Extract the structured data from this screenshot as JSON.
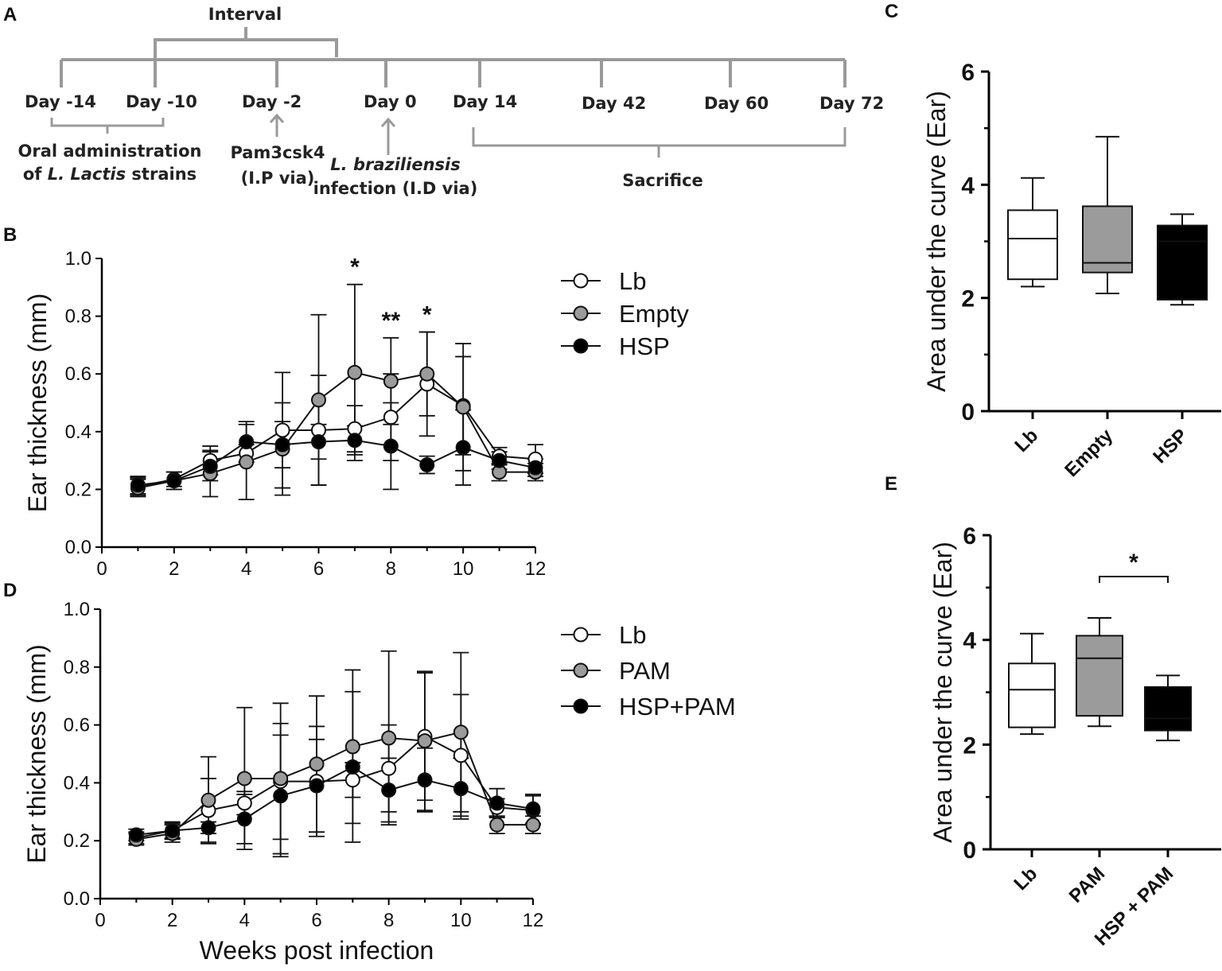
{
  "panels": {
    "A": "A",
    "B": "B",
    "C": "C",
    "D": "D",
    "E": "E"
  },
  "timeline": {
    "interval_label": "Interval",
    "days": [
      {
        "id": "m14",
        "label": "Day  -14"
      },
      {
        "id": "m10",
        "label": "Day  -10"
      },
      {
        "id": "m2",
        "label": "Day  -2"
      },
      {
        "id": "d0",
        "label": "Day 0"
      },
      {
        "id": "d14",
        "label": "Day 14"
      },
      {
        "id": "d42",
        "label": "Day 42"
      },
      {
        "id": "d60",
        "label": "Day 60"
      },
      {
        "id": "d72",
        "label": "Day 72"
      }
    ],
    "oral_line1": "Oral administration",
    "oral_line2_pre": "of ",
    "oral_line2_italic": "L. Lactis",
    "oral_line2_post": " strains",
    "pam_line1": "Pam3csk4",
    "pam_line2": "(I.P via)",
    "inf_line1": "L. braziliensis",
    "inf_line2": "infection (I.D via)",
    "sacrifice": "Sacrifice"
  },
  "colors": {
    "white": "#ffffff",
    "gray": "#9b9b9b",
    "black": "#000000",
    "timeline": "#9a9a9a"
  },
  "chart_data": [
    {
      "id": "B",
      "type": "line",
      "xlabel": "",
      "ylabel": "Ear thickness (mm)",
      "xlim": [
        0,
        12
      ],
      "ylim": [
        0,
        1.0
      ],
      "xticks": [
        "0",
        "2",
        "4",
        "6",
        "8",
        "10",
        "12"
      ],
      "yticks": [
        "0.0",
        "0.2",
        "0.4",
        "0.6",
        "0.8",
        "1.0"
      ],
      "x": [
        1,
        2,
        3,
        4,
        5,
        6,
        7,
        8,
        9,
        10,
        11,
        12
      ],
      "series": [
        {
          "name": "Lb",
          "fill": "white",
          "values": [
            0.21,
            0.235,
            0.3,
            0.325,
            0.405,
            0.405,
            0.41,
            0.45,
            0.565,
            0.49,
            0.315,
            0.305
          ],
          "errors": [
            0.03,
            0.025,
            0.05,
            0.03,
            0.2,
            0.19,
            0.08,
            0.15,
            0.18,
            0.17,
            0.03,
            0.05
          ]
        },
        {
          "name": "Empty",
          "fill": "gray",
          "values": [
            0.205,
            0.23,
            0.255,
            0.295,
            0.34,
            0.51,
            0.605,
            0.575,
            0.6,
            0.485,
            0.26,
            0.26
          ],
          "errors": [
            0.03,
            0.03,
            0.08,
            0.13,
            0.16,
            0.295,
            0.305,
            0.15,
            0.145,
            0.22,
            0.03,
            0.03
          ]
        },
        {
          "name": "HSP",
          "fill": "black",
          "values": [
            0.215,
            0.23,
            0.28,
            0.365,
            0.355,
            0.365,
            0.37,
            0.35,
            0.285,
            0.345,
            0.3,
            0.275
          ],
          "errors": [
            0.03,
            0.03,
            0.05,
            0.07,
            0.08,
            0.06,
            0.05,
            0.15,
            0.03,
            0.13,
            0.03,
            0.03
          ]
        }
      ],
      "annotations": [
        {
          "x": 7,
          "text": "*"
        },
        {
          "x": 8,
          "text": "**"
        },
        {
          "x": 9,
          "text": "*"
        }
      ]
    },
    {
      "id": "D",
      "type": "line",
      "xlabel": "Weeks post infection",
      "ylabel": "Ear thickness (mm)",
      "xlim": [
        0,
        12
      ],
      "ylim": [
        0,
        1.0
      ],
      "xticks": [
        "0",
        "2",
        "4",
        "6",
        "8",
        "10",
        "12"
      ],
      "yticks": [
        "0.0",
        "0.2",
        "0.4",
        "0.6",
        "0.8",
        "1.0"
      ],
      "x": [
        1,
        2,
        3,
        4,
        5,
        6,
        7,
        8,
        9,
        10,
        11,
        12
      ],
      "series": [
        {
          "name": "Lb",
          "fill": "white",
          "values": [
            0.21,
            0.235,
            0.305,
            0.33,
            0.405,
            0.405,
            0.41,
            0.45,
            0.56,
            0.495,
            0.315,
            0.305
          ],
          "errors": [
            0.02,
            0.025,
            0.11,
            0.04,
            0.2,
            0.19,
            0.06,
            0.15,
            0.22,
            0.21,
            0.03,
            0.05
          ]
        },
        {
          "name": "PAM",
          "fill": "gray",
          "values": [
            0.205,
            0.225,
            0.34,
            0.415,
            0.415,
            0.465,
            0.525,
            0.555,
            0.545,
            0.575,
            0.255,
            0.255
          ],
          "errors": [
            0.02,
            0.03,
            0.15,
            0.245,
            0.26,
            0.235,
            0.265,
            0.3,
            0.24,
            0.275,
            0.03,
            0.03
          ]
        },
        {
          "name": "HSP+PAM",
          "fill": "black",
          "values": [
            0.22,
            0.235,
            0.245,
            0.275,
            0.355,
            0.39,
            0.455,
            0.375,
            0.41,
            0.38,
            0.33,
            0.31
          ],
          "errors": [
            0.02,
            0.03,
            0.02,
            0.085,
            0.21,
            0.16,
            0.26,
            0.11,
            0.11,
            0.105,
            0.05,
            0.05
          ]
        }
      ]
    },
    {
      "id": "C",
      "type": "box",
      "ylabel": "Area under the curve (Ear)",
      "ylim": [
        0,
        6
      ],
      "yticks": [
        "0",
        "2",
        "4",
        "6"
      ],
      "categories": [
        "Lb",
        "Empty",
        "HSP"
      ],
      "boxes": [
        {
          "fill": "white",
          "min": 2.2,
          "q1": 2.33,
          "median": 3.05,
          "q3": 3.55,
          "max": 4.12
        },
        {
          "fill": "gray",
          "min": 2.08,
          "q1": 2.45,
          "median": 2.62,
          "q3": 3.62,
          "max": 4.85
        },
        {
          "fill": "black",
          "min": 1.88,
          "q1": 1.97,
          "median": 3.0,
          "q3": 3.28,
          "max": 3.48
        }
      ]
    },
    {
      "id": "E",
      "type": "box",
      "ylabel": "Area under the curve (Ear)",
      "ylim": [
        0,
        6
      ],
      "yticks": [
        "0",
        "2",
        "4",
        "6"
      ],
      "categories": [
        "Lb",
        "PAM",
        "HSP + PAM"
      ],
      "boxes": [
        {
          "fill": "white",
          "min": 2.2,
          "q1": 2.33,
          "median": 3.05,
          "q3": 3.55,
          "max": 4.12
        },
        {
          "fill": "gray",
          "min": 2.35,
          "q1": 2.55,
          "median": 3.65,
          "q3": 4.08,
          "max": 4.42
        },
        {
          "fill": "black",
          "min": 2.08,
          "q1": 2.27,
          "median": 2.5,
          "q3": 3.1,
          "max": 3.32
        }
      ],
      "significance": {
        "from": 1,
        "to": 2,
        "text": "*"
      }
    }
  ]
}
